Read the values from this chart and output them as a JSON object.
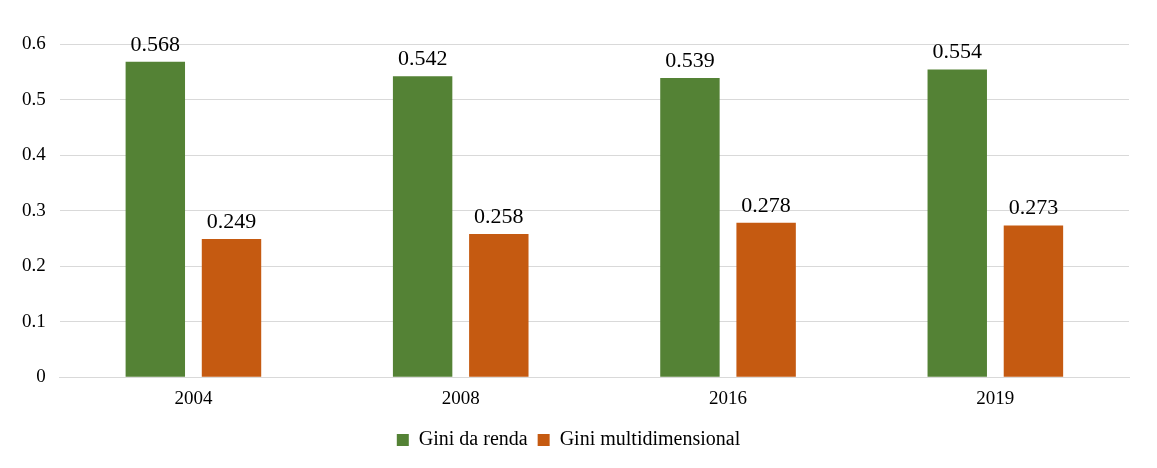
{
  "chart_data": {
    "type": "bar",
    "categories": [
      "2004",
      "2008",
      "2016",
      "2019"
    ],
    "series": [
      {
        "name": "Gini da renda",
        "color": "#548235",
        "values": [
          0.568,
          0.542,
          0.539,
          0.554
        ]
      },
      {
        "name": "Gini multidimensional",
        "color": "#c55a11",
        "values": [
          0.249,
          0.258,
          0.278,
          0.273
        ]
      }
    ],
    "ylim": [
      0,
      0.6
    ],
    "yticks": [
      0,
      0.1,
      0.2,
      0.3,
      0.4,
      0.5,
      0.6
    ],
    "grid": "y",
    "legend": "bottom",
    "data_labels": true
  }
}
